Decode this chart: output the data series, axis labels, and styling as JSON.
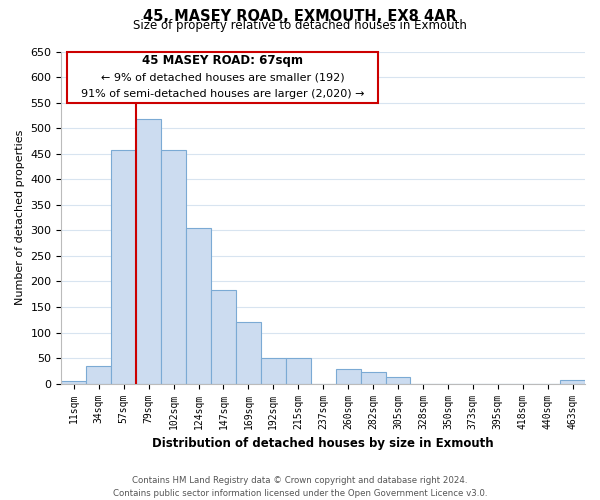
{
  "title": "45, MASEY ROAD, EXMOUTH, EX8 4AR",
  "subtitle": "Size of property relative to detached houses in Exmouth",
  "xlabel": "Distribution of detached houses by size in Exmouth",
  "ylabel": "Number of detached properties",
  "bar_labels": [
    "11sqm",
    "34sqm",
    "57sqm",
    "79sqm",
    "102sqm",
    "124sqm",
    "147sqm",
    "169sqm",
    "192sqm",
    "215sqm",
    "237sqm",
    "260sqm",
    "282sqm",
    "305sqm",
    "328sqm",
    "350sqm",
    "373sqm",
    "395sqm",
    "418sqm",
    "440sqm",
    "463sqm"
  ],
  "bar_values": [
    5,
    35,
    458,
    517,
    458,
    305,
    183,
    120,
    50,
    50,
    0,
    28,
    22,
    13,
    0,
    0,
    0,
    0,
    0,
    0,
    8
  ],
  "bar_color": "#ccdcf0",
  "bar_edge_color": "#7baad4",
  "vline_after_index": 2,
  "vline_color": "#cc0000",
  "ylim": [
    0,
    650
  ],
  "yticks": [
    0,
    50,
    100,
    150,
    200,
    250,
    300,
    350,
    400,
    450,
    500,
    550,
    600,
    650
  ],
  "annotation_title": "45 MASEY ROAD: 67sqm",
  "annotation_line1": "← 9% of detached houses are smaller (192)",
  "annotation_line2": "91% of semi-detached houses are larger (2,020) →",
  "annotation_box_color": "#ffffff",
  "annotation_box_edge": "#cc0000",
  "footer_line1": "Contains HM Land Registry data © Crown copyright and database right 2024.",
  "footer_line2": "Contains public sector information licensed under the Open Government Licence v3.0.",
  "bg_color": "#ffffff",
  "grid_color": "#d8e4f0"
}
